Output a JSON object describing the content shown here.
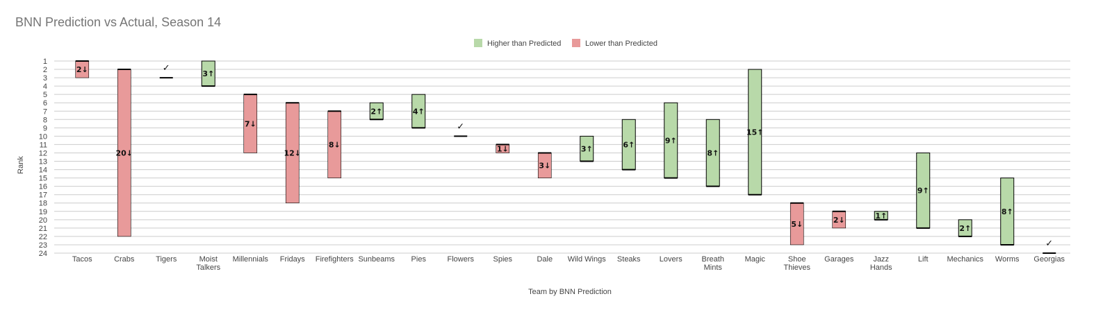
{
  "chart_data": {
    "type": "bar",
    "title": "BNN Prediction vs Actual, Season 14",
    "xlabel": "Team by BNN Prediction",
    "ylabel": "Rank",
    "ylim": [
      1,
      24
    ],
    "y_reversed": true,
    "grid": true,
    "legend_position": "top-center",
    "legend": [
      {
        "label": "Higher than Predicted",
        "color": "#b8d9a9"
      },
      {
        "label": "Lower than Predicted",
        "color": "#e89a9a"
      }
    ],
    "colors": {
      "higher": "#b8d9a9",
      "lower": "#e89a9a",
      "same": "#000000"
    },
    "same_marker": "✓",
    "y_ticks": [
      1,
      2,
      3,
      4,
      5,
      6,
      7,
      8,
      9,
      10,
      11,
      12,
      13,
      14,
      15,
      16,
      17,
      18,
      19,
      20,
      21,
      22,
      23,
      24
    ],
    "categories": [
      [
        "Tacos"
      ],
      [
        "Crabs"
      ],
      [
        "Tigers"
      ],
      [
        "Moist",
        "Talkers"
      ],
      [
        "Millennials"
      ],
      [
        "Fridays"
      ],
      [
        "Firefighters"
      ],
      [
        "Sunbeams"
      ],
      [
        "Pies"
      ],
      [
        "Flowers"
      ],
      [
        "Spies"
      ],
      [
        "Dale"
      ],
      [
        "Wild Wings"
      ],
      [
        "Steaks"
      ],
      [
        "Lovers"
      ],
      [
        "Breath",
        "Mints"
      ],
      [
        "Magic"
      ],
      [
        "Shoe",
        "Thieves"
      ],
      [
        "Garages"
      ],
      [
        "Jazz",
        "Hands"
      ],
      [
        "Lift"
      ],
      [
        "Mechanics"
      ],
      [
        "Worms"
      ],
      [
        "Georgias"
      ]
    ],
    "predicted": [
      1,
      2,
      3,
      4,
      5,
      6,
      7,
      8,
      9,
      10,
      11,
      12,
      13,
      14,
      15,
      16,
      17,
      18,
      19,
      20,
      21,
      22,
      23,
      24
    ],
    "actual": [
      3,
      22,
      3,
      1,
      12,
      18,
      15,
      6,
      5,
      10,
      12,
      15,
      10,
      8,
      6,
      8,
      2,
      23,
      21,
      19,
      12,
      20,
      15,
      24
    ],
    "labels": [
      "2↓",
      "20↓",
      "✓",
      "3↑",
      "7↓",
      "12↓",
      "8↓",
      "2↑",
      "4↑",
      "✓",
      "1↓",
      "3↓",
      "3↑",
      "6↑",
      "9↑",
      "8↑",
      "15↑",
      "5↓",
      "2↓",
      "1↑",
      "9↑",
      "2↑",
      "8↑",
      "✓"
    ]
  }
}
